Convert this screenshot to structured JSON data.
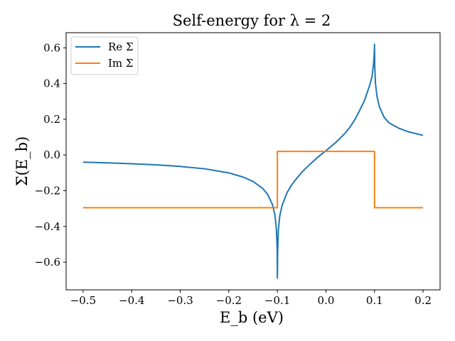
{
  "chart_data": {
    "type": "line",
    "title": "Self-energy for λ = 2",
    "xlabel": "E_b (eV)",
    "ylabel": "Σ(E_b)",
    "xlim": [
      -0.535,
      0.235
    ],
    "ylim": [
      -0.755,
      0.685
    ],
    "xticks": [
      -0.5,
      -0.4,
      -0.3,
      -0.2,
      -0.1,
      0.0,
      0.1,
      0.2
    ],
    "xtick_labels": [
      "−0.5",
      "−0.4",
      "−0.3",
      "−0.2",
      "−0.1",
      "0.0",
      "0.1",
      "0.2"
    ],
    "yticks": [
      -0.6,
      -0.4,
      -0.2,
      0.0,
      0.2,
      0.4,
      0.6
    ],
    "ytick_labels": [
      "−0.6",
      "−0.4",
      "−0.2",
      "0.0",
      "0.2",
      "0.4",
      "0.6"
    ],
    "grid": false,
    "legend_position": "top-left",
    "series": [
      {
        "name": "Re Σ",
        "color": "#1f77b4",
        "x": [
          -0.5,
          -0.45,
          -0.4,
          -0.35,
          -0.3,
          -0.25,
          -0.2,
          -0.17,
          -0.15,
          -0.13,
          -0.12,
          -0.11,
          -0.105,
          -0.102,
          -0.1005,
          -0.1,
          -0.0995,
          -0.098,
          -0.095,
          -0.09,
          -0.08,
          -0.07,
          -0.06,
          -0.05,
          -0.04,
          -0.03,
          -0.02,
          -0.01,
          0.0,
          0.01,
          0.02,
          0.03,
          0.04,
          0.05,
          0.06,
          0.07,
          0.08,
          0.09,
          0.095,
          0.098,
          0.0995,
          0.1,
          0.1005,
          0.102,
          0.105,
          0.11,
          0.12,
          0.13,
          0.15,
          0.17,
          0.2
        ],
        "y": [
          -0.04,
          -0.044,
          -0.049,
          -0.055,
          -0.064,
          -0.077,
          -0.1,
          -0.124,
          -0.148,
          -0.188,
          -0.221,
          -0.278,
          -0.337,
          -0.418,
          -0.52,
          -0.69,
          -0.55,
          -0.42,
          -0.34,
          -0.28,
          -0.21,
          -0.165,
          -0.13,
          -0.098,
          -0.07,
          -0.045,
          -0.02,
          0.003,
          0.024,
          0.047,
          0.07,
          0.096,
          0.124,
          0.158,
          0.2,
          0.253,
          0.31,
          0.39,
          0.44,
          0.51,
          0.57,
          0.62,
          0.5,
          0.4,
          0.33,
          0.27,
          0.21,
          0.18,
          0.15,
          0.13,
          0.11
        ]
      },
      {
        "name": "Im Σ",
        "color": "#ff7f0e",
        "x": [
          -0.5,
          -0.1,
          -0.1,
          0.1,
          0.1,
          0.2
        ],
        "y": [
          -0.295,
          -0.295,
          0.02,
          0.02,
          -0.295,
          -0.295
        ]
      }
    ]
  }
}
